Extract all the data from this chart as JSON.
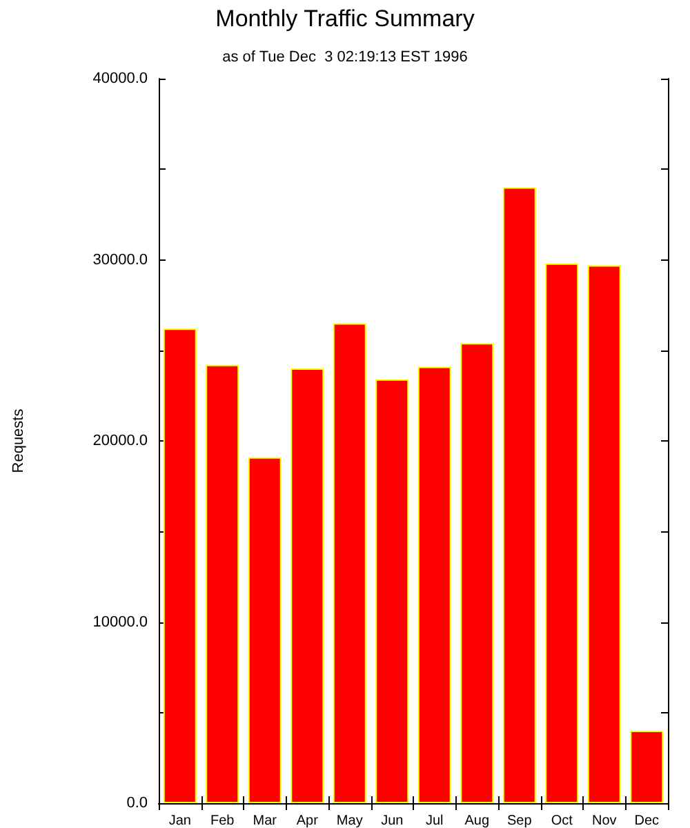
{
  "chart_data": {
    "type": "bar",
    "title": "Monthly Traffic Summary",
    "subtitle": "as of Tue Dec  3 02:19:13 EST 1996",
    "ylabel": "Requests",
    "categories": [
      "Jan",
      "Feb",
      "Mar",
      "Apr",
      "May",
      "Jun",
      "Jul",
      "Aug",
      "Sep",
      "Oct",
      "Nov",
      "Dec"
    ],
    "values": [
      26200,
      24200,
      19100,
      24000,
      26500,
      23400,
      24100,
      25400,
      34000,
      29800,
      29700,
      4000
    ],
    "color": "#ff0000",
    "ylim": [
      0,
      40000
    ],
    "yticks": [
      {
        "value": 0,
        "label": "0.0"
      },
      {
        "value": 5000,
        "label": null
      },
      {
        "value": 10000,
        "label": "10000.0"
      },
      {
        "value": 15000,
        "label": null
      },
      {
        "value": 20000,
        "label": "20000.0"
      },
      {
        "value": 25000,
        "label": null
      },
      {
        "value": 30000,
        "label": "30000.0"
      },
      {
        "value": 35000,
        "label": null
      },
      {
        "value": 40000,
        "label": "40000.0"
      }
    ],
    "grid": false
  }
}
